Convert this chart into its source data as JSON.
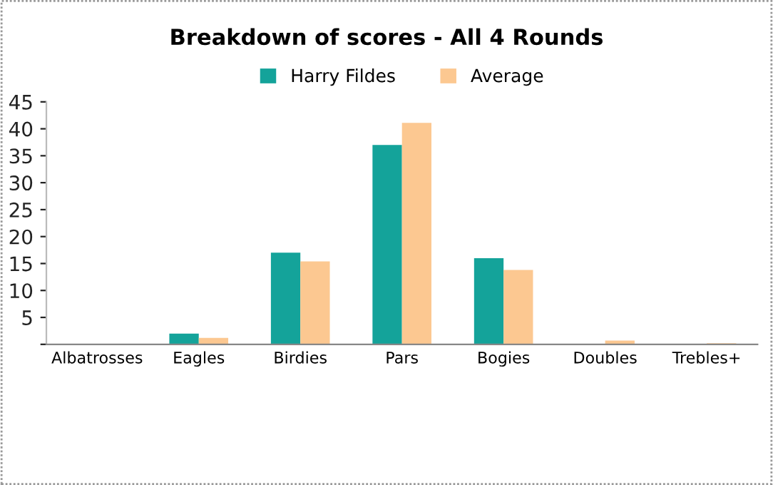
{
  "chart_data": {
    "type": "bar",
    "title": "Breakdown of scores - All 4 Rounds",
    "categories": [
      "Albatrosses",
      "Eagles",
      "Birdies",
      "Pars",
      "Bogies",
      "Doubles",
      "Trebles+"
    ],
    "series": [
      {
        "name": "Harry Fildes",
        "color": "#14a39a",
        "values": [
          0,
          2,
          17,
          37,
          16,
          0,
          0
        ]
      },
      {
        "name": "Average",
        "color": "#fcc891",
        "values": [
          0,
          1.2,
          15.4,
          41.1,
          13.8,
          0.7,
          0.2
        ]
      }
    ],
    "ylim": [
      0,
      45
    ],
    "yticks": [
      {
        "value": 0,
        "label": null
      },
      5,
      10,
      15,
      20,
      25,
      30,
      35,
      40,
      45
    ],
    "grid": false,
    "legend": "top"
  }
}
